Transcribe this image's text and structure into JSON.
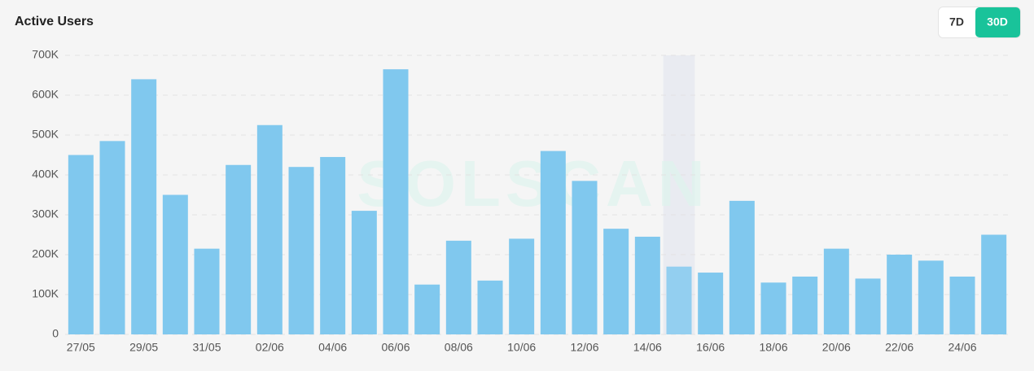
{
  "controls": [
    "7D",
    "30D"
  ],
  "watermark": "SOLSCAN",
  "chart_data": {
    "type": "bar",
    "title": "Active Users",
    "categories": [
      "27/05",
      null,
      "29/05",
      null,
      "31/05",
      null,
      "02/06",
      null,
      "04/06",
      null,
      "06/06",
      null,
      "08/06",
      null,
      "10/06",
      null,
      "12/06",
      null,
      "14/06",
      null,
      "16/06",
      null,
      "18/06",
      null,
      "20/06",
      null,
      "22/06",
      null,
      "24/06",
      null
    ],
    "values": [
      450000,
      485000,
      640000,
      350000,
      215000,
      425000,
      525000,
      420000,
      445000,
      310000,
      665000,
      125000,
      235000,
      135000,
      240000,
      460000,
      385000,
      265000,
      245000,
      170000,
      155000,
      335000,
      130000,
      145000,
      215000,
      140000,
      200000,
      185000,
      145000,
      250000
    ],
    "color": "#80c8ee",
    "highlight": 19,
    "highlight_color": "#93cff0",
    "ylim": [
      0,
      700000
    ],
    "yticks": [
      0,
      {
        "value": 100000,
        "label": "100K"
      },
      {
        "value": 200000,
        "label": "200K"
      },
      {
        "value": 300000,
        "label": "300K"
      },
      {
        "value": 400000,
        "label": "400K"
      },
      {
        "value": 500000,
        "label": "500K"
      },
      {
        "value": 600000,
        "label": "600K"
      },
      {
        "value": 700000,
        "label": "700K"
      }
    ],
    "grid": true
  }
}
